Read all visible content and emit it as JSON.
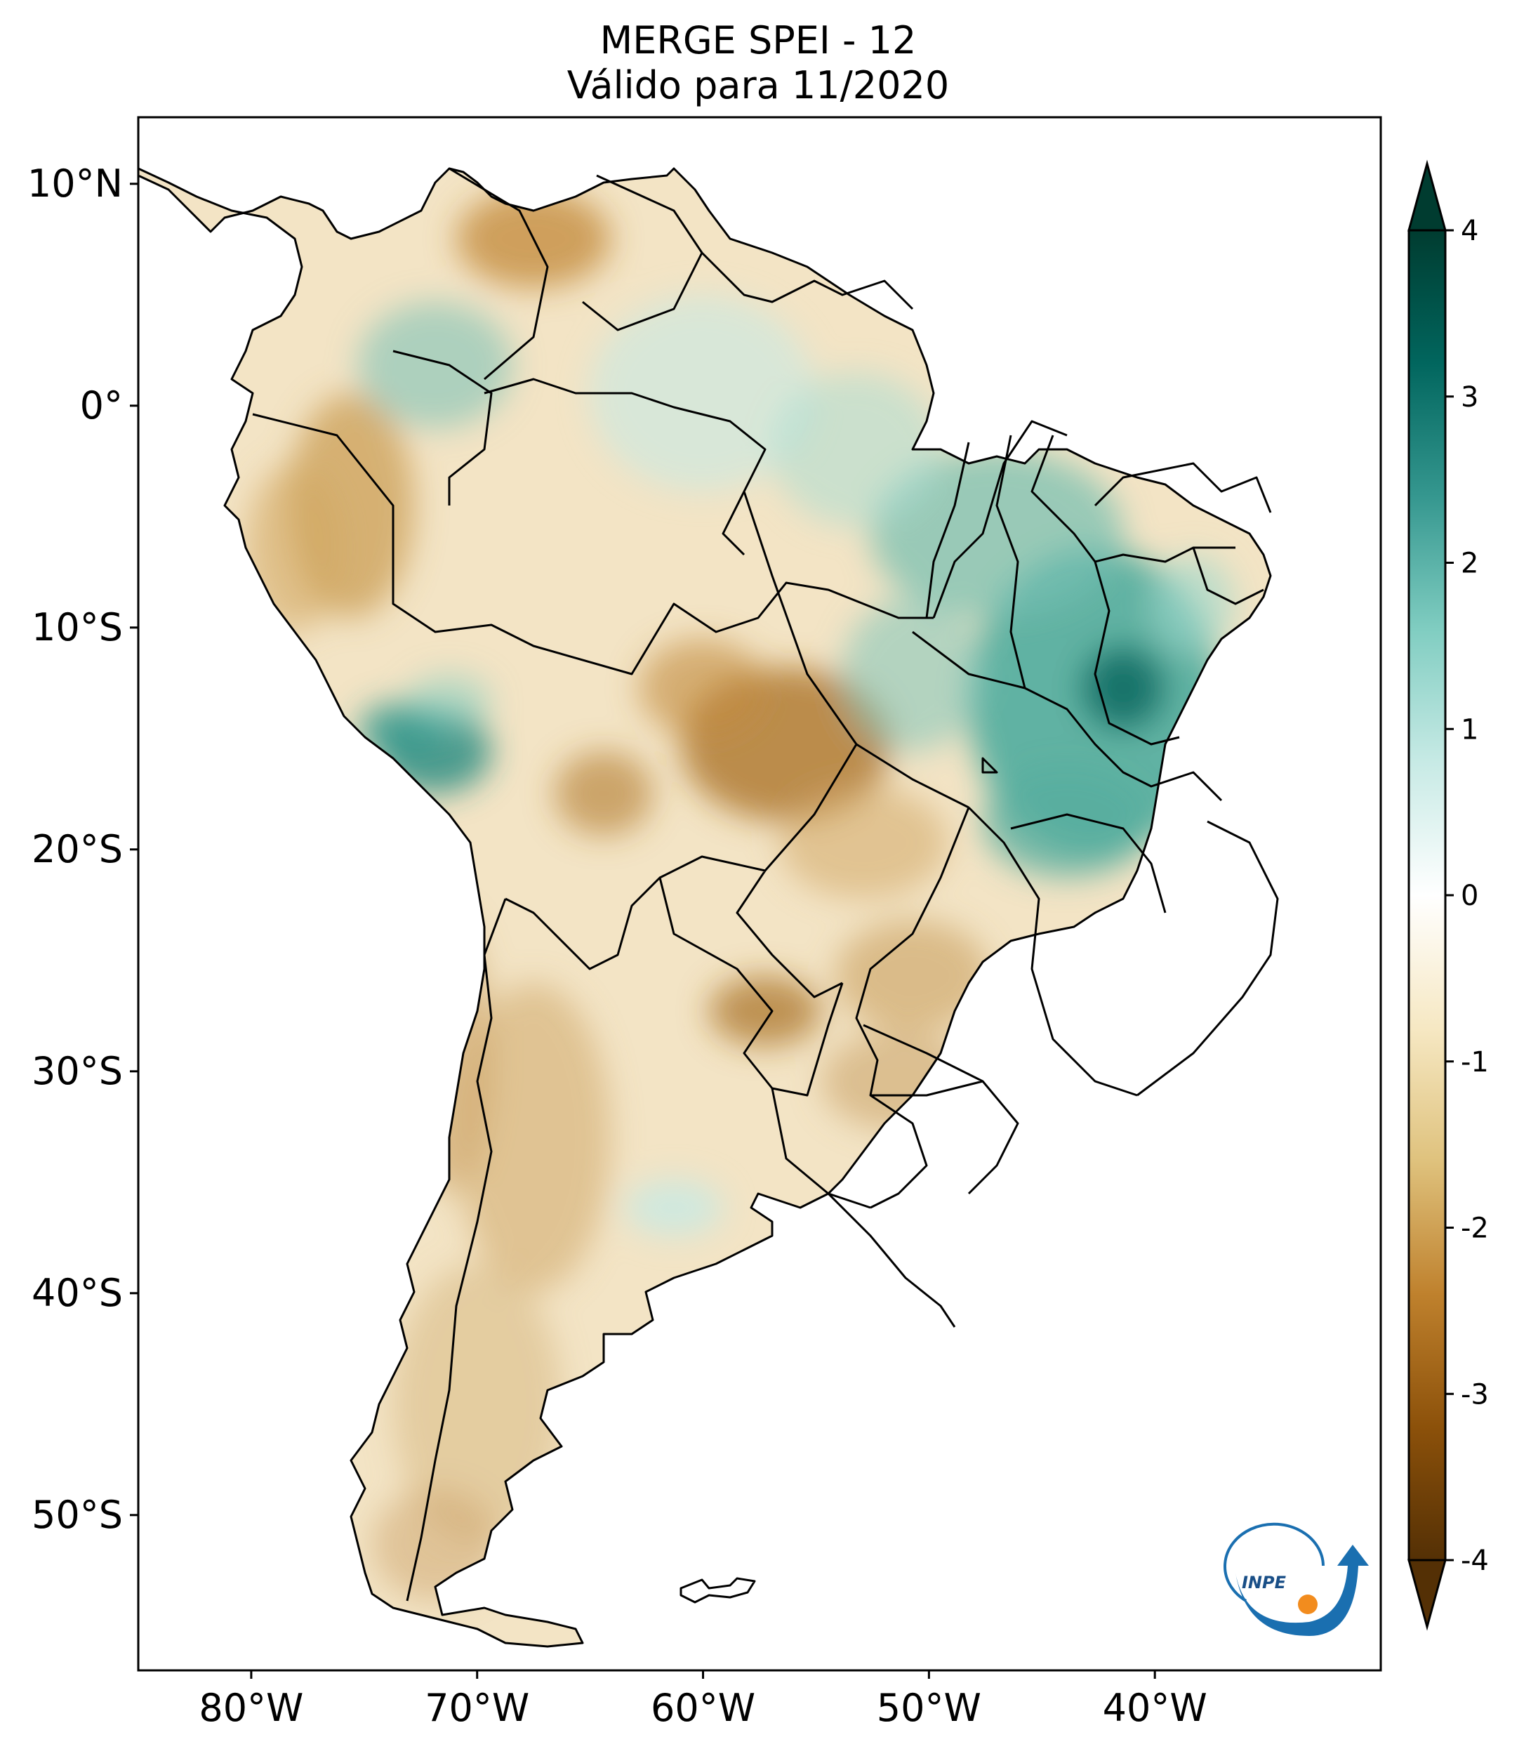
{
  "title": {
    "line1": "MERGE   SPEI - 12",
    "line2": "Válido para 11/2020"
  },
  "map": {
    "extent_lon": [
      -85,
      -30
    ],
    "extent_lat": [
      -57,
      13
    ],
    "lat_ticks": [
      {
        "value": 10,
        "label": "10°N"
      },
      {
        "value": 0,
        "label": "0°"
      },
      {
        "value": -10,
        "label": "10°S"
      },
      {
        "value": -20,
        "label": "20°S"
      },
      {
        "value": -30,
        "label": "30°S"
      },
      {
        "value": -40,
        "label": "40°S"
      },
      {
        "value": -50,
        "label": "50°S"
      }
    ],
    "lon_ticks": [
      {
        "value": -80,
        "label": "80°W"
      },
      {
        "value": -70,
        "label": "70°W"
      },
      {
        "value": -60,
        "label": "60°W"
      },
      {
        "value": -50,
        "label": "50°W"
      },
      {
        "value": -40,
        "label": "40°W"
      }
    ]
  },
  "colorbar": {
    "min": -4,
    "max": 4,
    "ticks": [
      {
        "value": 4,
        "label": "4"
      },
      {
        "value": 3,
        "label": "3"
      },
      {
        "value": 2,
        "label": "2"
      },
      {
        "value": 1,
        "label": "1"
      },
      {
        "value": 0,
        "label": "0"
      },
      {
        "value": -1,
        "label": "-1"
      },
      {
        "value": -2,
        "label": "-2"
      },
      {
        "value": -3,
        "label": "-3"
      },
      {
        "value": -4,
        "label": "-4"
      }
    ],
    "colors": [
      "#543005",
      "#8c510a",
      "#bf812d",
      "#dfc27d",
      "#f6e8c3",
      "#ffffff",
      "#c7eae5",
      "#80cdc1",
      "#35978f",
      "#01665e",
      "#003c30"
    ]
  },
  "logo": {
    "text": "INPE"
  }
}
